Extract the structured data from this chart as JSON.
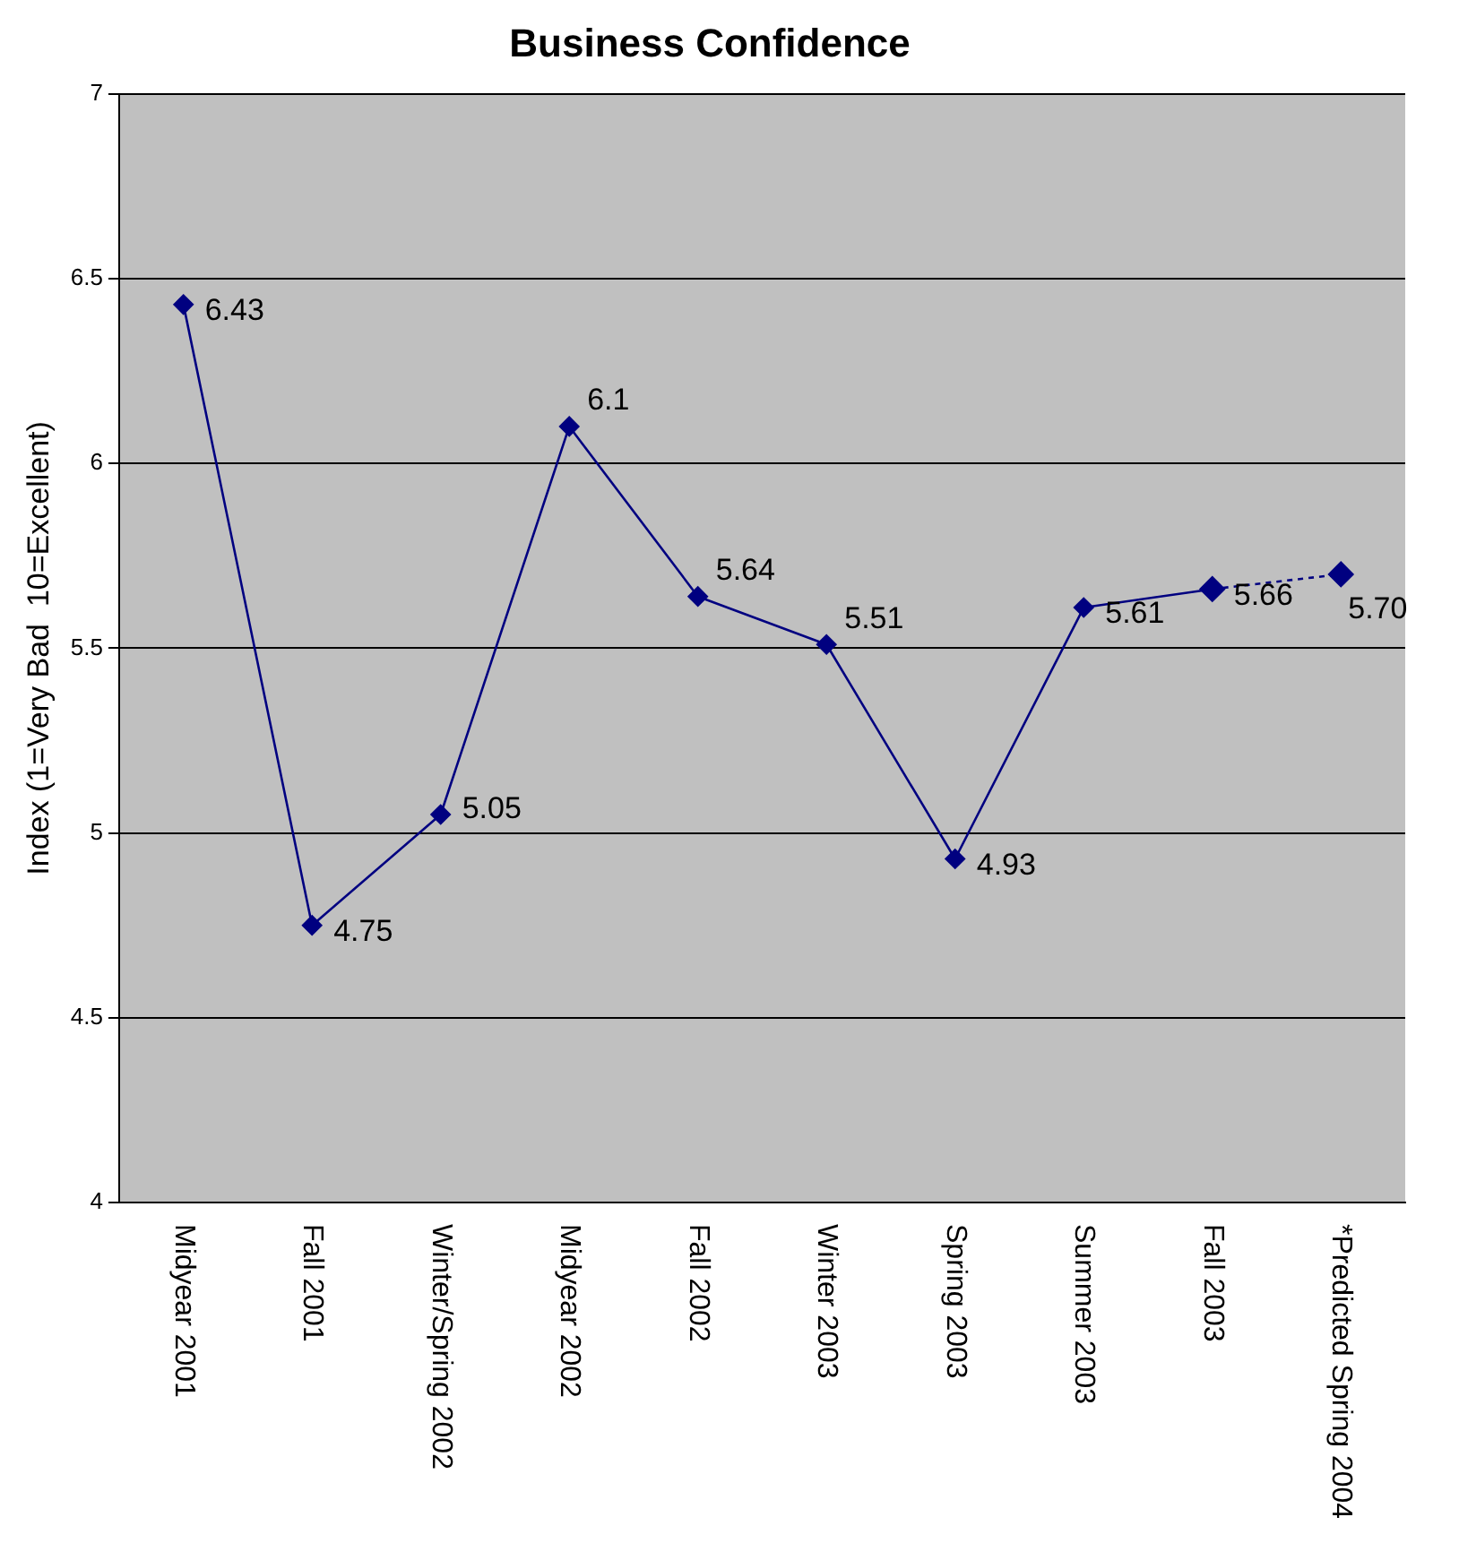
{
  "chart_data": {
    "type": "line",
    "title": "Business Confidence",
    "ylabel": "Index (1=Very Bad  10=Excellent)",
    "categories": [
      "Midyear 2001",
      "Fall 2001",
      "Winter/Spring 2002",
      "Midyear 2002",
      "Fall 2002",
      "Winter 2003",
      "Spring 2003",
      "Summer 2003",
      "Fall 2003",
      "*Predicted Spring 2004"
    ],
    "series": [
      {
        "color": "#000080",
        "values": [
          6.43,
          4.75,
          5.05,
          6.1,
          5.64,
          5.51,
          4.93,
          5.61,
          5.66,
          null
        ],
        "value_labels": [
          "6.43",
          "4.75",
          "5.05",
          "6.1",
          "5.64",
          "5.51",
          "4.93",
          "5.61",
          "5.66",
          null
        ],
        "line_style": "solid"
      },
      {
        "color": "#000080",
        "values": [
          null,
          null,
          null,
          null,
          null,
          null,
          null,
          null,
          5.66,
          5.7
        ],
        "value_labels": [
          null,
          null,
          null,
          null,
          null,
          null,
          null,
          null,
          null,
          "5.70"
        ],
        "line_style": "dotted"
      }
    ],
    "ylim": [
      4,
      7
    ],
    "yticks": [
      4,
      4.5,
      5,
      5.5,
      6,
      6.5,
      7
    ],
    "grid": "y",
    "marker": "diamond",
    "legend": false
  }
}
